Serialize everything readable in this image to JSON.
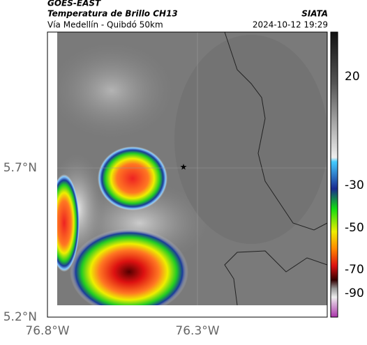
{
  "header": {
    "title": "GOES-EAST",
    "subtitle": "Temperatura de Brillo CH13",
    "location": "Vía Medellín - Quibdó 50km",
    "source": "SIATA",
    "datetime": "2024-10-12 19:29"
  },
  "map": {
    "y_labels": [
      "5.7°N",
      "5.2°N"
    ],
    "x_labels": [
      "76.8°W",
      "76.3°W"
    ]
  },
  "colorbar": {
    "labels": [
      "20",
      "-30",
      "-50",
      "-70",
      "-90"
    ]
  }
}
